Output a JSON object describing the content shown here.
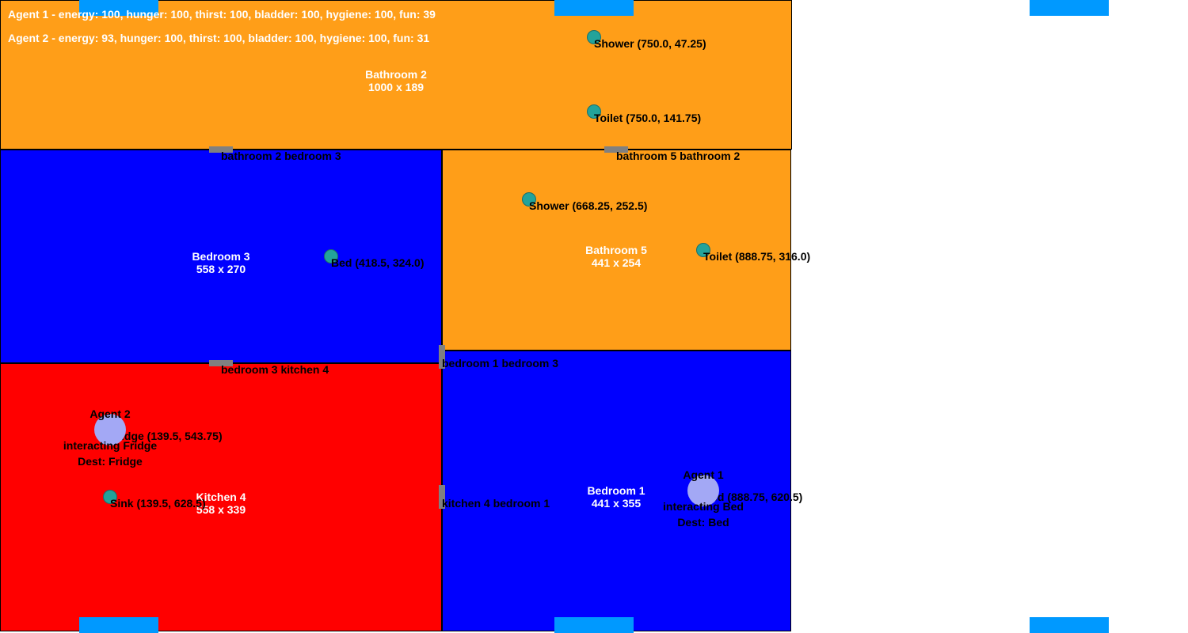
{
  "stats": {
    "agent1": "Agent 1 - energy: 100, hunger: 100, thirst: 100, bladder: 100, hygiene: 100, fun: 39",
    "agent2": "Agent 2 - energy: 93, hunger: 100, thirst: 100, bladder: 100, hygiene: 100, fun: 31"
  },
  "colors": {
    "bathroom": "#ff9e18",
    "bedroom": "#0000ff",
    "kitchen": "#ff0000",
    "door": "#808080",
    "object": "#23a39a",
    "agent": "#a3a8f5",
    "edge_marker": "#0099ff"
  },
  "rooms": {
    "bathroom2": {
      "name": "Bathroom 2",
      "size": "1000 x 189"
    },
    "bedroom3": {
      "name": "Bedroom 3",
      "size": "558 x 270"
    },
    "bathroom5": {
      "name": "Bathroom 5",
      "size": "441 x 254"
    },
    "kitchen4": {
      "name": "Kitchen 4",
      "size": "558 x 339"
    },
    "bedroom1": {
      "name": "Bedroom 1",
      "size": "441 x 355"
    }
  },
  "objects": {
    "shower_b2": "Shower (750.0, 47.25)",
    "toilet_b2": "Toilet (750.0, 141.75)",
    "bed_b3": "Bed (418.5, 324.0)",
    "shower_b5": "Shower (668.25, 252.5)",
    "toilet_b5": "Toilet (888.75, 316.0)",
    "fridge_k4": "Fridge (139.5, 543.75)",
    "sink_k4": "Sink (139.5, 628.5)",
    "bed_b1": "Bed (888.75, 620.5)"
  },
  "doors": {
    "b2_b3": "bathroom 2 bedroom 3",
    "b5_b2": "bathroom 5 bathroom 2",
    "b3_k4": "bedroom 3 kitchen 4",
    "b1_b3": "bedroom 1 bedroom 3",
    "k4_b1": "kitchen 4 bedroom 1"
  },
  "agents": {
    "agent1": {
      "name": "Agent 1",
      "status": "interacting Bed",
      "dest": "Dest: Bed"
    },
    "agent2": {
      "name": "Agent 2",
      "status": "interacting Fridge",
      "dest": "Dest: Fridge"
    }
  }
}
